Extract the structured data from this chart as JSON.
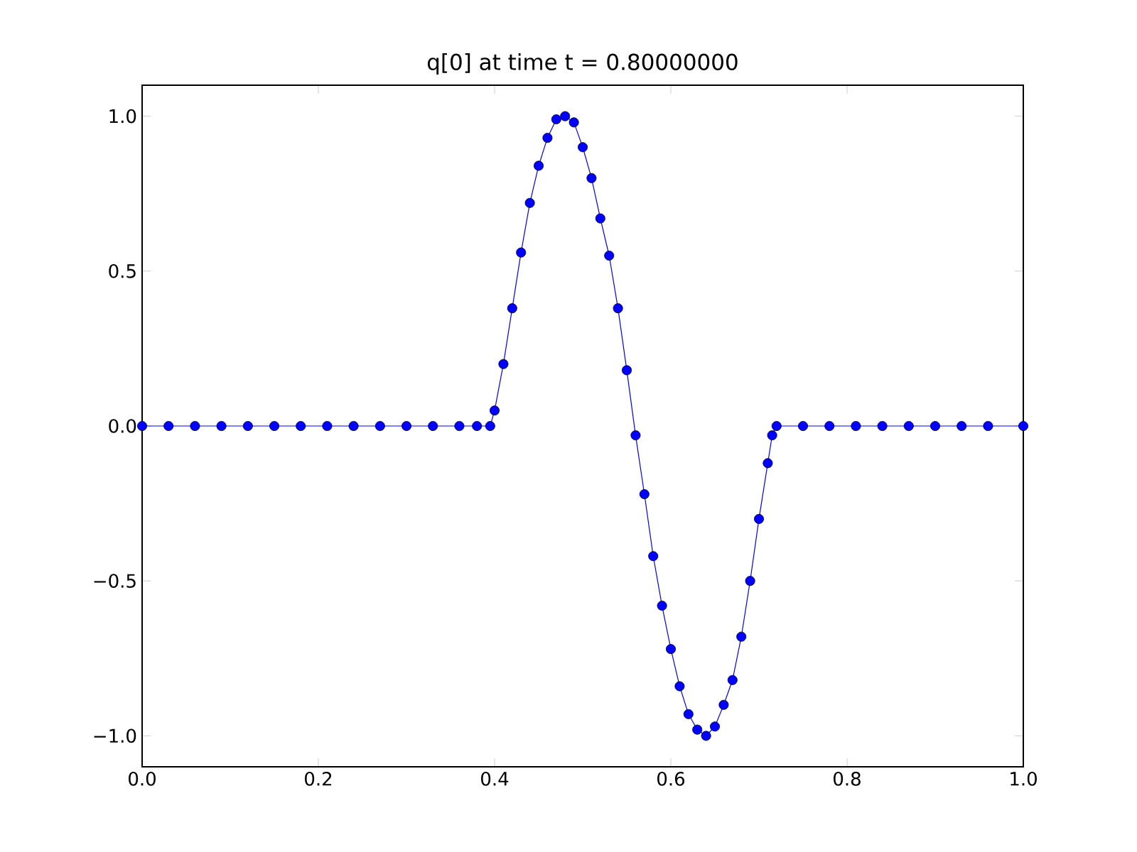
{
  "chart_data": {
    "type": "line",
    "title": "q[0] at time t =     0.80000000",
    "x": [
      0.0,
      0.03,
      0.06,
      0.09,
      0.12,
      0.15,
      0.18,
      0.21,
      0.24,
      0.27,
      0.3,
      0.33,
      0.36,
      0.38,
      0.395,
      0.4,
      0.41,
      0.42,
      0.43,
      0.44,
      0.45,
      0.46,
      0.47,
      0.48,
      0.49,
      0.5,
      0.51,
      0.52,
      0.53,
      0.54,
      0.55,
      0.56,
      0.57,
      0.58,
      0.59,
      0.6,
      0.61,
      0.62,
      0.63,
      0.64,
      0.65,
      0.66,
      0.67,
      0.68,
      0.69,
      0.7,
      0.71,
      0.715,
      0.72,
      0.75,
      0.78,
      0.81,
      0.84,
      0.87,
      0.9,
      0.93,
      0.96,
      1.0
    ],
    "series": [
      {
        "color": "#0000ff",
        "values": [
          0,
          0,
          0,
          0,
          0,
          0,
          0,
          0,
          0,
          0,
          0,
          0,
          0,
          0,
          0,
          0.05,
          0.2,
          0.38,
          0.56,
          0.72,
          0.84,
          0.93,
          0.99,
          1.0,
          0.98,
          0.9,
          0.8,
          0.67,
          0.55,
          0.38,
          0.18,
          -0.03,
          -0.22,
          -0.42,
          -0.58,
          -0.72,
          -0.84,
          -0.93,
          -0.98,
          -1.0,
          -0.97,
          -0.9,
          -0.82,
          -0.68,
          -0.5,
          -0.3,
          -0.12,
          -0.03,
          0,
          0,
          0,
          0,
          0,
          0,
          0,
          0,
          0,
          0
        ]
      }
    ],
    "xlim": [
      0,
      1
    ],
    "ylim": [
      -1.1,
      1.1
    ],
    "xticks": [
      {
        "value": 0,
        "label": "0.0"
      },
      {
        "value": 0.2,
        "label": "0.2"
      },
      {
        "value": 0.4,
        "label": "0.4"
      },
      {
        "value": 0.6,
        "label": "0.6"
      },
      {
        "value": 0.8,
        "label": "0.8"
      },
      {
        "value": 1.0,
        "label": "1.0"
      }
    ],
    "yticks": [
      {
        "value": -1.0,
        "label": "−1.0"
      },
      {
        "value": -0.5,
        "label": "−0.5"
      },
      {
        "value": 0.0,
        "label": "0.0"
      },
      {
        "value": 0.5,
        "label": "0.5"
      },
      {
        "value": 1.0,
        "label": "1.0"
      }
    ],
    "marker": "circle",
    "line_style": "solid"
  }
}
